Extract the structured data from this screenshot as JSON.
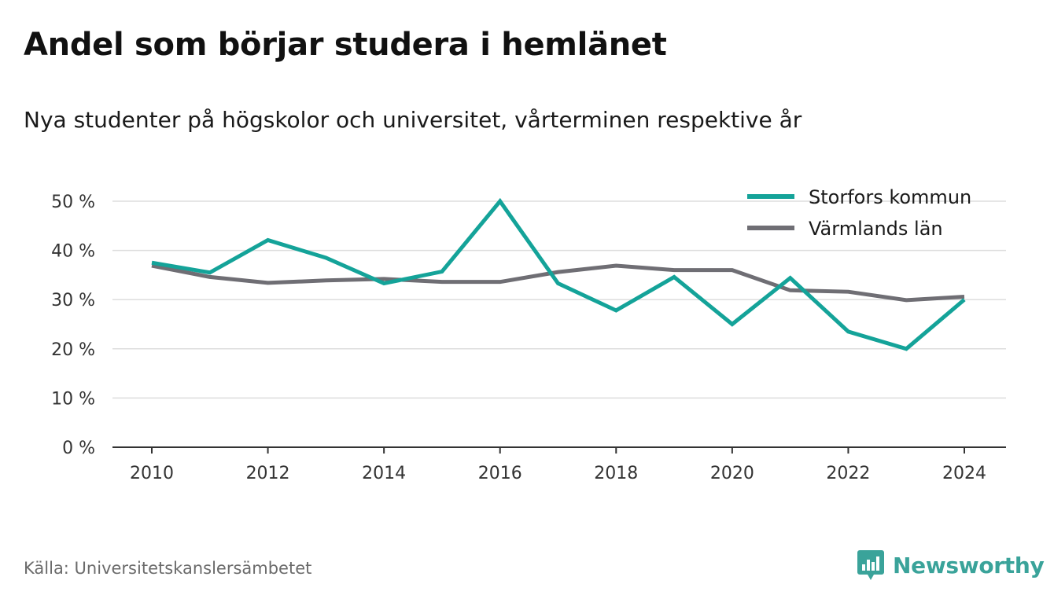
{
  "header": {
    "title": "Andel som börjar studera i hemlänet",
    "subtitle": "Nya studenter på högskolor och universitet, vårterminen respektive år"
  },
  "footer": {
    "source": "Källa: Universitetskanslersämbetet",
    "brand": "Newsworthy",
    "brand_icon": "newsworthy-logo-icon"
  },
  "colors": {
    "series_1": "#14a399",
    "series_2": "#6f6e74",
    "grid": "#dddddd",
    "axis": "#333333",
    "brand": "#3aa39a"
  },
  "chart_data": {
    "type": "line",
    "title": "Andel som börjar studera i hemlänet",
    "subtitle": "Nya studenter på högskolor och universitet, vårterminen respektive år",
    "xlabel": "",
    "ylabel": "",
    "x": [
      2010,
      2011,
      2012,
      2013,
      2014,
      2015,
      2016,
      2017,
      2018,
      2019,
      2020,
      2021,
      2022,
      2023,
      2024
    ],
    "xlim": [
      2010,
      2024
    ],
    "xticks": [
      "2010",
      "2012",
      "2014",
      "2016",
      "2018",
      "2020",
      "2022",
      "2024"
    ],
    "ylim": [
      0,
      50
    ],
    "yticks": [
      "0 %",
      "10 %",
      "20 %",
      "30 %",
      "40 %",
      "50 %"
    ],
    "grid": true,
    "legend_position": "top-right",
    "series": [
      {
        "name": "Storfors kommun",
        "values": [
          37.5,
          35.5,
          42.1,
          38.5,
          33.3,
          35.7,
          50.0,
          33.3,
          27.8,
          34.6,
          25.0,
          34.4,
          23.5,
          20.0,
          30.0
        ]
      },
      {
        "name": "Värmlands län",
        "values": [
          36.9,
          34.6,
          33.4,
          33.9,
          34.2,
          33.6,
          33.6,
          35.6,
          36.9,
          36.0,
          36.0,
          31.9,
          31.6,
          29.9,
          30.6
        ]
      }
    ]
  }
}
